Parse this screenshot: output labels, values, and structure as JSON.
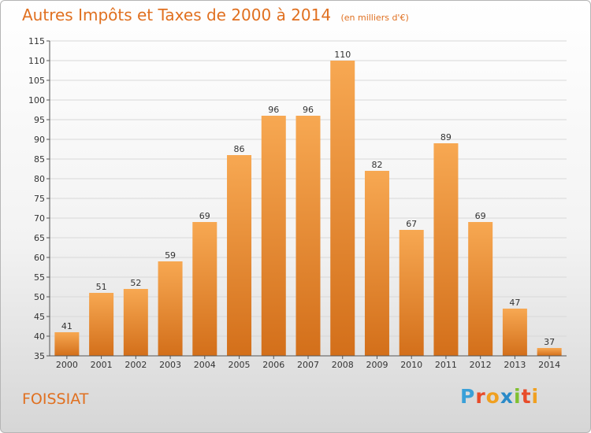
{
  "header": {
    "title": "Autres Impôts et Taxes de 2000 à 2014",
    "unit": "(en milliers d'€)"
  },
  "commune": "FOISSIAT",
  "brand": {
    "letters": [
      "P",
      "r",
      "o",
      "x",
      "i",
      "t",
      "i"
    ],
    "colors": [
      "#3aa0d8",
      "#e84c2a",
      "#f0a020",
      "#2a8ac8",
      "#80c030",
      "#e84c2a",
      "#f0a020"
    ]
  },
  "colors": {
    "bar_top": "#f7a852",
    "bar_bottom": "#d36f1a",
    "text": "#e07020",
    "grid": "#d8d8d8"
  },
  "chart_data": {
    "type": "bar",
    "categories": [
      "2000",
      "2001",
      "2002",
      "2003",
      "2004",
      "2005",
      "2006",
      "2007",
      "2008",
      "2009",
      "2010",
      "2011",
      "2012",
      "2013",
      "2014"
    ],
    "values": [
      41,
      51,
      52,
      59,
      69,
      86,
      96,
      96,
      110,
      82,
      67,
      89,
      69,
      47,
      37
    ],
    "ylim": [
      35,
      115
    ],
    "yticks": [
      35,
      40,
      45,
      50,
      55,
      60,
      65,
      70,
      75,
      80,
      85,
      90,
      95,
      100,
      105,
      110,
      115
    ],
    "grid": "horizontal",
    "title": "Autres Impôts et Taxes de 2000 à 2014",
    "xlabel": "",
    "ylabel": ""
  }
}
